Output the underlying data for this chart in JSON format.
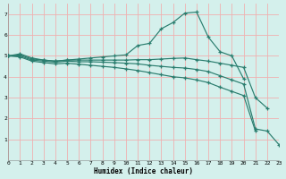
{
  "xlabel": "Humidex (Indice chaleur)",
  "bg_color": "#d4f0ec",
  "grid_color": "#f0b0b0",
  "line_color": "#2a7d6e",
  "xlim": [
    0,
    23
  ],
  "ylim": [
    0,
    7.5
  ],
  "xticks": [
    0,
    1,
    2,
    3,
    4,
    5,
    6,
    7,
    8,
    9,
    10,
    11,
    12,
    13,
    14,
    15,
    16,
    17,
    18,
    19,
    20,
    21,
    22,
    23
  ],
  "yticks": [
    1,
    2,
    3,
    4,
    5,
    6,
    7
  ],
  "lines": [
    {
      "x": [
        0,
        1,
        2,
        3,
        4,
        5,
        6,
        7,
        8,
        9,
        10,
        11,
        12,
        13,
        14,
        15,
        16,
        17,
        18,
        19,
        20
      ],
      "y": [
        5.0,
        5.1,
        4.9,
        4.8,
        4.75,
        4.8,
        4.85,
        4.9,
        4.95,
        5.0,
        5.05,
        5.5,
        5.6,
        6.3,
        6.6,
        7.05,
        7.1,
        5.9,
        5.2,
        5.0,
        3.9
      ]
    },
    {
      "x": [
        0,
        1,
        2,
        3,
        4,
        5,
        6,
        7,
        8,
        9,
        10,
        11,
        12,
        13,
        14,
        15,
        16,
        17,
        18,
        19,
        20,
        21,
        22
      ],
      "y": [
        5.0,
        5.05,
        4.85,
        4.8,
        4.75,
        4.8,
        4.8,
        4.8,
        4.8,
        4.8,
        4.8,
        4.82,
        4.82,
        4.85,
        4.88,
        4.9,
        4.82,
        4.75,
        4.65,
        4.55,
        4.45,
        3.0,
        2.5
      ]
    },
    {
      "x": [
        0,
        1,
        2,
        3,
        4,
        5,
        6,
        7,
        8,
        9,
        10,
        11,
        12,
        13,
        14,
        15,
        16,
        17,
        18,
        19,
        20,
        21,
        22,
        23
      ],
      "y": [
        5.0,
        5.0,
        4.8,
        4.75,
        4.7,
        4.75,
        4.72,
        4.72,
        4.7,
        4.68,
        4.65,
        4.62,
        4.55,
        4.5,
        4.45,
        4.42,
        4.35,
        4.25,
        4.05,
        3.85,
        3.65,
        1.5,
        1.4,
        0.75
      ]
    },
    {
      "x": [
        0,
        1,
        2,
        3,
        4,
        5,
        6,
        7,
        8,
        9,
        10,
        11,
        12,
        13,
        14,
        15,
        16,
        17,
        18,
        19,
        20,
        21
      ],
      "y": [
        5.0,
        4.95,
        4.75,
        4.68,
        4.62,
        4.65,
        4.6,
        4.55,
        4.5,
        4.45,
        4.38,
        4.3,
        4.2,
        4.1,
        4.0,
        3.95,
        3.85,
        3.72,
        3.5,
        3.3,
        3.1,
        1.4
      ]
    }
  ]
}
